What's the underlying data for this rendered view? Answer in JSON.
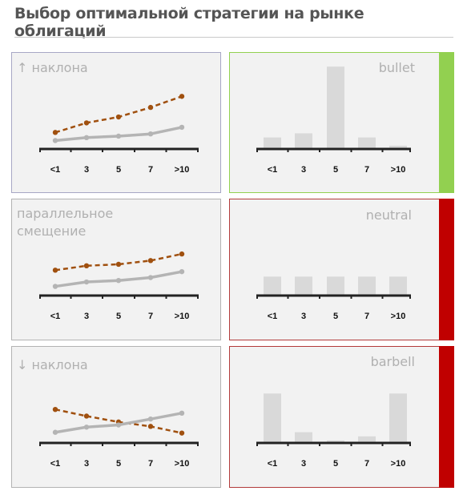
{
  "title": "Выбор оптимальной  стратегии на рынке облигаций",
  "colors": {
    "panel_bg": "#f2f2f2",
    "line_dashed": "#a0500f",
    "line_solid": "#b4b4b4",
    "bar": "#d9d9d9",
    "axis": "#222222",
    "label_gray": "#b0b0b0",
    "green_accent": "#92d050",
    "red_accent": "#c00000"
  },
  "chart_data": [
    {
      "type": "line",
      "label_lines": [
        "↑ наклона"
      ],
      "categories": [
        "<1",
        "3",
        "5",
        "7",
        ">10"
      ],
      "series": [
        {
          "style": "dashed",
          "values": [
            4.2,
            5.5,
            6.3,
            7.6,
            9.1
          ]
        },
        {
          "style": "solid",
          "values": [
            3.1,
            3.5,
            3.7,
            4.0,
            4.9
          ]
        }
      ],
      "ylim": [
        0,
        10
      ]
    },
    {
      "type": "bar",
      "label_lines": [
        "bullet"
      ],
      "categories": [
        "<1",
        "3",
        "5",
        "7",
        ">10"
      ],
      "values": [
        1.4,
        1.9,
        10,
        1.4,
        0.4
      ],
      "ylim": [
        0,
        10.5
      ],
      "accent": "green"
    },
    {
      "type": "line",
      "label_lines": [
        "параллельное",
        "смещение"
      ],
      "categories": [
        "<1",
        "3",
        "5",
        "7",
        ">10"
      ],
      "series": [
        {
          "style": "dashed",
          "values": [
            5.4,
            6.0,
            6.2,
            6.7,
            7.6
          ]
        },
        {
          "style": "solid",
          "values": [
            3.2,
            3.8,
            4.0,
            4.4,
            5.2
          ]
        }
      ],
      "ylim": [
        0,
        10
      ]
    },
    {
      "type": "bar",
      "label_lines": [
        "neutral"
      ],
      "categories": [
        "<1",
        "3",
        "5",
        "7",
        ">10"
      ],
      "values": [
        2.3,
        2.3,
        2.3,
        2.3,
        2.3
      ],
      "ylim": [
        0,
        10.5
      ],
      "accent": "red"
    },
    {
      "type": "line",
      "label_lines": [
        "↓ наклона"
      ],
      "categories": [
        "<1",
        "3",
        "5",
        "7",
        ">10"
      ],
      "series": [
        {
          "style": "dashed",
          "values": [
            6.5,
            5.6,
            4.8,
            4.2,
            3.3
          ]
        },
        {
          "style": "solid",
          "values": [
            3.4,
            4.1,
            4.4,
            5.2,
            6.0
          ]
        }
      ],
      "ylim": [
        0,
        10
      ]
    },
    {
      "type": "bar",
      "label_lines": [
        "barbell"
      ],
      "categories": [
        "<1",
        "3",
        "5",
        "7",
        ">10"
      ],
      "values": [
        6.0,
        1.3,
        0.3,
        0.8,
        6.0
      ],
      "ylim": [
        0,
        10.5
      ],
      "accent": "red"
    }
  ]
}
